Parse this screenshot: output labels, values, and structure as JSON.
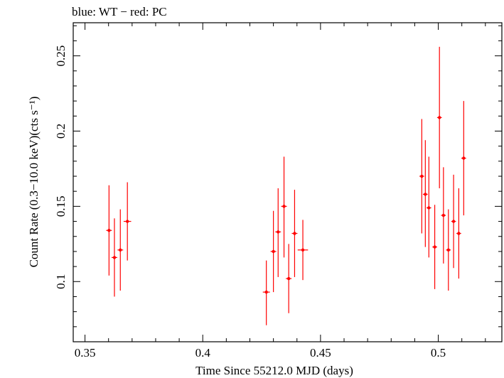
{
  "chart_data": {
    "type": "scatter",
    "title": "blue: WT − red: PC",
    "xlabel": "Time Since 55212.0 MJD (days)",
    "ylabel": "Count Rate (0.3−10.0 keV)(cts s⁻¹)",
    "xlim": [
      0.345,
      0.527
    ],
    "ylim": [
      0.06,
      0.272
    ],
    "xticks": [
      0.35,
      0.4,
      0.45,
      0.5
    ],
    "xtick_labels": [
      "0.35",
      "0.4",
      "0.45",
      "0.5"
    ],
    "yticks": [
      0.1,
      0.15,
      0.2,
      0.25
    ],
    "ytick_labels": [
      "0.1",
      "0.15",
      "0.2",
      "0.25"
    ],
    "grid": false,
    "series": [
      {
        "name": "PC",
        "color": "#ff0000",
        "points": [
          {
            "x": 0.3602,
            "y": 0.134,
            "xerr": 0.0012,
            "ylo": 0.104,
            "yhi": 0.164
          },
          {
            "x": 0.3625,
            "y": 0.116,
            "xerr": 0.0012,
            "ylo": 0.09,
            "yhi": 0.142
          },
          {
            "x": 0.365,
            "y": 0.121,
            "xerr": 0.0012,
            "ylo": 0.094,
            "yhi": 0.148
          },
          {
            "x": 0.368,
            "y": 0.14,
            "xerr": 0.0016,
            "ylo": 0.114,
            "yhi": 0.166
          },
          {
            "x": 0.427,
            "y": 0.093,
            "xerr": 0.0015,
            "ylo": 0.071,
            "yhi": 0.114
          },
          {
            "x": 0.43,
            "y": 0.12,
            "xerr": 0.0012,
            "ylo": 0.093,
            "yhi": 0.147
          },
          {
            "x": 0.432,
            "y": 0.133,
            "xerr": 0.0012,
            "ylo": 0.103,
            "yhi": 0.162
          },
          {
            "x": 0.4345,
            "y": 0.15,
            "xerr": 0.0012,
            "ylo": 0.116,
            "yhi": 0.183
          },
          {
            "x": 0.4365,
            "y": 0.102,
            "xerr": 0.0012,
            "ylo": 0.079,
            "yhi": 0.125
          },
          {
            "x": 0.439,
            "y": 0.132,
            "xerr": 0.0012,
            "ylo": 0.103,
            "yhi": 0.161
          },
          {
            "x": 0.4425,
            "y": 0.121,
            "xerr": 0.0022,
            "ylo": 0.101,
            "yhi": 0.141
          },
          {
            "x": 0.493,
            "y": 0.17,
            "xerr": 0.001,
            "ylo": 0.132,
            "yhi": 0.208
          },
          {
            "x": 0.4945,
            "y": 0.158,
            "xerr": 0.001,
            "ylo": 0.123,
            "yhi": 0.194
          },
          {
            "x": 0.496,
            "y": 0.149,
            "xerr": 0.001,
            "ylo": 0.116,
            "yhi": 0.183
          },
          {
            "x": 0.4985,
            "y": 0.123,
            "xerr": 0.001,
            "ylo": 0.095,
            "yhi": 0.151
          },
          {
            "x": 0.5005,
            "y": 0.209,
            "xerr": 0.001,
            "ylo": 0.162,
            "yhi": 0.256
          },
          {
            "x": 0.5022,
            "y": 0.144,
            "xerr": 0.001,
            "ylo": 0.112,
            "yhi": 0.176
          },
          {
            "x": 0.5043,
            "y": 0.121,
            "xerr": 0.001,
            "ylo": 0.094,
            "yhi": 0.148
          },
          {
            "x": 0.5065,
            "y": 0.14,
            "xerr": 0.001,
            "ylo": 0.109,
            "yhi": 0.171
          },
          {
            "x": 0.5087,
            "y": 0.132,
            "xerr": 0.001,
            "ylo": 0.102,
            "yhi": 0.162
          },
          {
            "x": 0.5108,
            "y": 0.182,
            "xerr": 0.001,
            "ylo": 0.144,
            "yhi": 0.22
          }
        ]
      }
    ]
  }
}
